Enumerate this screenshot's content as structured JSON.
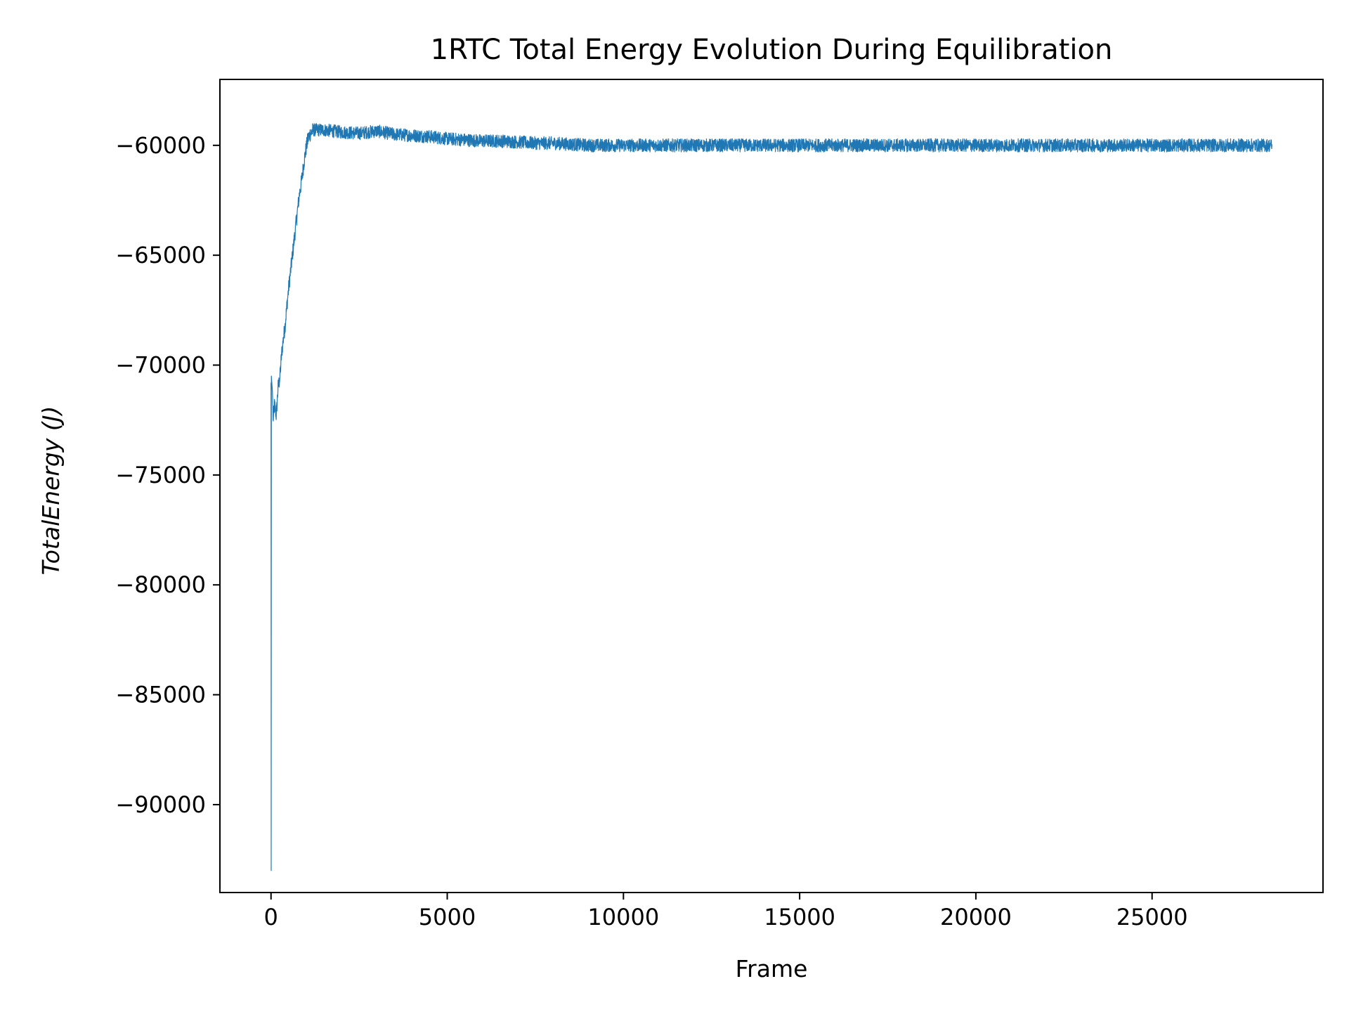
{
  "chart_data": {
    "type": "line",
    "title": "1RTC Total Energy Evolution During Equilibration",
    "xlabel": "Frame",
    "ylabel": "TotalEnergy (J)",
    "xlim": [
      -1450,
      29850
    ],
    "ylim": [
      -94000,
      -57000
    ],
    "xticks": [
      0,
      5000,
      10000,
      15000,
      20000,
      25000
    ],
    "xtick_labels": [
      "0",
      "5000",
      "10000",
      "15000",
      "20000",
      "25000"
    ],
    "yticks": [
      -90000,
      -85000,
      -80000,
      -75000,
      -70000,
      -65000,
      -60000
    ],
    "ytick_labels": [
      "−90000",
      "−85000",
      "−80000",
      "−75000",
      "−70000",
      "−65000",
      "−60000"
    ],
    "grid": false,
    "legend": "none",
    "series": [
      {
        "color": "#1f77b4",
        "x": [
          0,
          5,
          10,
          40,
          60,
          100,
          150,
          200,
          250,
          300,
          350,
          400,
          450,
          500,
          550,
          600,
          650,
          700,
          750,
          800,
          850,
          900,
          950,
          1000,
          1050,
          1100,
          1150,
          1200,
          1250,
          1300,
          1500,
          2000,
          2500,
          3000,
          3500,
          4000,
          4500,
          5000,
          5500,
          6000,
          6500,
          7000,
          7500,
          8000,
          8500,
          9000,
          9500,
          10000,
          10500,
          11000,
          12000,
          13000,
          14000,
          15000,
          16000,
          17000,
          18000,
          19000,
          20000,
          21000,
          22000,
          23000,
          24000,
          25000,
          26000,
          27000,
          28000,
          28400
        ],
        "y": [
          -70800,
          -93000,
          -70500,
          -71200,
          -72500,
          -71800,
          -72300,
          -71000,
          -70600,
          -69500,
          -68800,
          -68200,
          -67300,
          -66500,
          -65800,
          -65100,
          -64400,
          -63700,
          -63000,
          -62300,
          -61800,
          -61200,
          -60600,
          -60100,
          -59700,
          -59500,
          -59400,
          -59300,
          -59300,
          -59300,
          -59300,
          -59400,
          -59450,
          -59350,
          -59500,
          -59550,
          -59600,
          -59700,
          -59750,
          -59800,
          -59800,
          -59850,
          -59900,
          -59900,
          -59950,
          -60000,
          -60000,
          -60000,
          -60000,
          -60000,
          -60000,
          -60000,
          -60000,
          -60000,
          -60000,
          -60000,
          -60000,
          -60000,
          -60000,
          -60000,
          -60000,
          -60000,
          -60000,
          -60000,
          -60000,
          -60000,
          -60000,
          -60000
        ],
        "noise_amplitude": 300
      }
    ]
  }
}
